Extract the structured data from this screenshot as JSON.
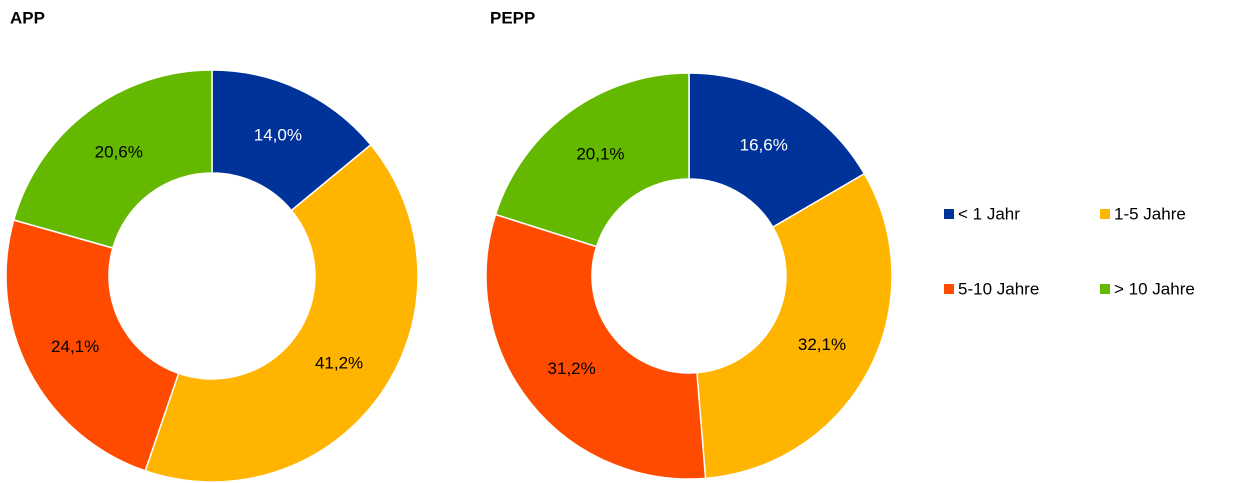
{
  "chart_data": [
    {
      "type": "donut",
      "title": "APP",
      "categories": [
        "< 1 Jahr",
        "1-5 Jahre",
        "5-10 Jahre",
        "> 10 Jahre"
      ],
      "values": [
        14.0,
        41.2,
        24.1,
        20.6
      ],
      "value_labels": [
        "14,0%",
        "41,2%",
        "24,1%",
        "20,6%"
      ],
      "colors": [
        "#003399",
        "#ffb400",
        "#ff4b00",
        "#65b800"
      ]
    },
    {
      "type": "donut",
      "title": "PEPP",
      "categories": [
        "< 1 Jahr",
        "1-5 Jahre",
        "5-10 Jahre",
        "> 10 Jahre"
      ],
      "values": [
        16.6,
        32.1,
        31.2,
        20.1
      ],
      "value_labels": [
        "16,6%",
        "32,1%",
        "31,2%",
        "20,1%"
      ],
      "colors": [
        "#003399",
        "#ffb400",
        "#ff4b00",
        "#65b800"
      ]
    }
  ]
}
